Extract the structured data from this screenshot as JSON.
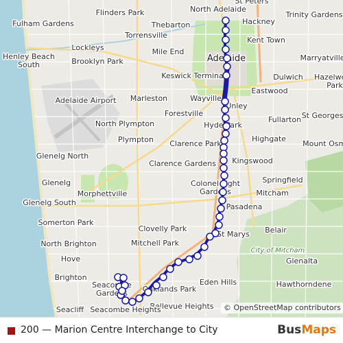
{
  "map": {
    "places": [
      {
        "label": "Flinders Park"
      },
      {
        "label": "North Adelaide"
      },
      {
        "label": "St Peters"
      },
      {
        "label": "Fulham Gardens"
      },
      {
        "label": "Thebarton"
      },
      {
        "label": "Hackney"
      },
      {
        "label": "Trinity Gardens"
      },
      {
        "label": "Torrensville"
      },
      {
        "label": "Kent Town"
      },
      {
        "label": "Lockleys"
      },
      {
        "label": "Mile End"
      },
      {
        "label": "Henley Beach South"
      },
      {
        "label": "Brooklyn Park"
      },
      {
        "label": "Adelaide"
      },
      {
        "label": "Marryatville"
      },
      {
        "label": "Keswick Terminal"
      },
      {
        "label": "Dulwich"
      },
      {
        "label": "Hazelwood Park"
      },
      {
        "label": "Adelaide Airport"
      },
      {
        "label": "Marleston"
      },
      {
        "label": "Eastwood"
      },
      {
        "label": "Wayville"
      },
      {
        "label": "Unley"
      },
      {
        "label": "Forestville"
      },
      {
        "label": "Fullarton"
      },
      {
        "label": "St Georges"
      },
      {
        "label": "North Plympton"
      },
      {
        "label": "Hyde Park"
      },
      {
        "label": "Plympton"
      },
      {
        "label": "Highgate"
      },
      {
        "label": "Clarence Park"
      },
      {
        "label": "Glenelg North"
      },
      {
        "label": "Mount Osmond"
      },
      {
        "label": "Kingswood"
      },
      {
        "label": "Clarence Gardens"
      },
      {
        "label": "Glenelg"
      },
      {
        "label": "Springfield"
      },
      {
        "label": "Colonel Light Gardens"
      },
      {
        "label": "Morphettville"
      },
      {
        "label": "Mitcham"
      },
      {
        "label": "Glenelg South"
      },
      {
        "label": "Pasadena"
      },
      {
        "label": "Somerton Park"
      },
      {
        "label": "Clovelly Park"
      },
      {
        "label": "Belair"
      },
      {
        "label": "North Brighton"
      },
      {
        "label": "Mitchell Park"
      },
      {
        "label": "St Marys"
      },
      {
        "label": "City of Mitcham"
      },
      {
        "label": "Hove"
      },
      {
        "label": "Glenalta"
      },
      {
        "label": "Brighton"
      },
      {
        "label": "Eden Hills"
      },
      {
        "label": "Seacombe Gardens"
      },
      {
        "label": "Oaklands Park"
      },
      {
        "label": "Hawthorndene"
      },
      {
        "label": "Bellevue Heights"
      },
      {
        "label": "Seacliff"
      },
      {
        "label": "Seacombe Heights"
      }
    ],
    "attribution": "© OpenStreetMap contributors"
  },
  "legend": {
    "route_label": "200 — Marion Centre Interchange to City",
    "route_color": "#a31515"
  },
  "brand": {
    "part1": "Bus",
    "part2": "Maps",
    "color1": "#333333",
    "color2": "#e07a10"
  },
  "route": {
    "color": "#1a1aa6",
    "stop_count": 55
  }
}
